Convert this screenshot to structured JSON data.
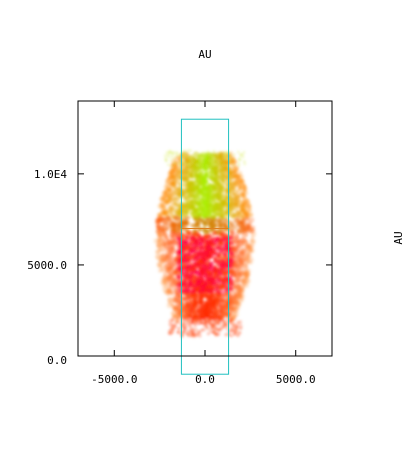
{
  "chart_data": {
    "type": "scatter",
    "title": "AU",
    "xlabel": "",
    "ylabel": "AU",
    "xlim": [
      -7000,
      7000
    ],
    "ylim": [
      0,
      14000
    ],
    "xticks": [
      {
        "value": -5000,
        "label": "-5000.0"
      },
      {
        "value": 0,
        "label": "0.0"
      },
      {
        "value": 5000,
        "label": "5000.0"
      }
    ],
    "yticks": [
      {
        "value": 0,
        "label": "0.0"
      },
      {
        "value": 5000,
        "label": "5000.0"
      },
      {
        "value": 10000,
        "label": "1.0E4"
      }
    ],
    "grid": false,
    "legend": "none",
    "series": [
      {
        "region": "lower-lobe",
        "color": "#ff2a00",
        "x_range": [
          -2800,
          2800
        ],
        "y_range": [
          1800,
          7000
        ]
      },
      {
        "region": "upper-lobe",
        "color": "#aaee00",
        "x_range": [
          -2600,
          2600
        ],
        "y_range": [
          7000,
          11000
        ]
      },
      {
        "region": "core",
        "color": "#ff0044",
        "x_range": [
          -1500,
          1500
        ],
        "y_range": [
          3500,
          6500
        ]
      },
      {
        "region": "base-ring",
        "color": "#ff6633",
        "x_range": [
          -2000,
          2000
        ],
        "y_range": [
          1100,
          2000
        ]
      }
    ],
    "overlay_box": {
      "x": [
        -1300,
        1300
      ],
      "y": [
        -1000,
        13000
      ],
      "color": "#20c0c0"
    },
    "midline": {
      "y": 7000,
      "x": [
        -1300,
        1300
      ],
      "color": "#e08020"
    }
  }
}
